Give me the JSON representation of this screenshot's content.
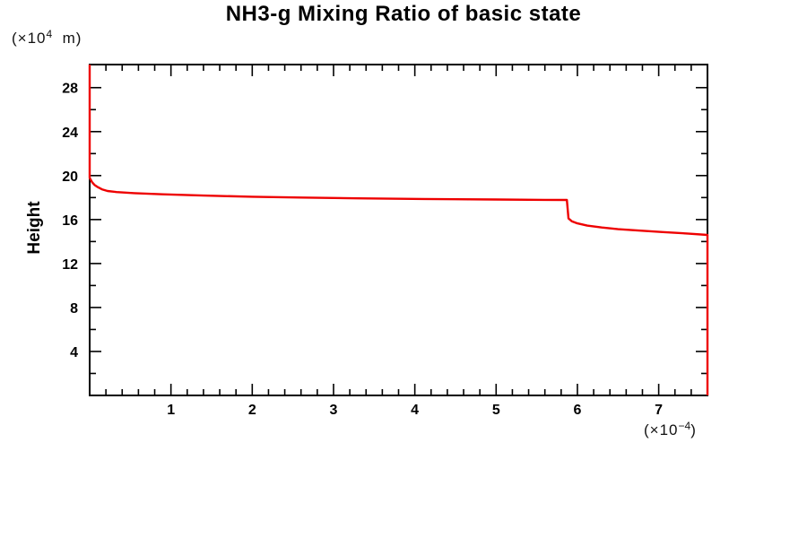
{
  "page": {
    "background": "#ffffff",
    "text_color": "#000000"
  },
  "header": {
    "title": "NH3-g Mixing Ratio of basic state"
  },
  "y_axis": {
    "label": "Height",
    "unit_prefix": "(×10",
    "unit_exponent": "4",
    "unit_suffix": "  m)"
  },
  "x_axis": {
    "unit_prefix": "(×10",
    "unit_exponent": "−4",
    "unit_suffix": ")"
  },
  "chart_data": {
    "type": "line",
    "title": "NH3-g Mixing Ratio of basic state",
    "xlabel": "(×10⁻⁴)",
    "ylabel": "Height (×10⁴ m)",
    "xlim": [
      0,
      7.6
    ],
    "ylim": [
      0,
      30.1
    ],
    "x_ticks_major": [
      1,
      2,
      3,
      4,
      5,
      6,
      7
    ],
    "x_minor_tick_step": 0.2,
    "y_ticks_major": [
      4,
      8,
      12,
      16,
      20,
      24,
      28
    ],
    "y_minor_tick_step": 2,
    "grid": false,
    "legend": "none",
    "axis_color": "#000000",
    "series": [
      {
        "name": "NH3-g mixing ratio basic state profile",
        "color": "#ee0000",
        "points": [
          [
            0.0,
            30.1
          ],
          [
            0.0,
            19.8
          ],
          [
            0.03,
            19.4
          ],
          [
            0.06,
            19.15
          ],
          [
            0.1,
            18.95
          ],
          [
            0.15,
            18.75
          ],
          [
            0.22,
            18.6
          ],
          [
            0.33,
            18.5
          ],
          [
            0.55,
            18.4
          ],
          [
            0.9,
            18.3
          ],
          [
            1.4,
            18.18
          ],
          [
            2.0,
            18.08
          ],
          [
            2.6,
            18.0
          ],
          [
            3.3,
            17.93
          ],
          [
            4.1,
            17.87
          ],
          [
            5.0,
            17.82
          ],
          [
            5.6,
            17.79
          ],
          [
            5.87,
            17.78
          ],
          [
            5.89,
            16.1
          ],
          [
            5.93,
            15.85
          ],
          [
            6.0,
            15.65
          ],
          [
            6.12,
            15.45
          ],
          [
            6.3,
            15.28
          ],
          [
            6.5,
            15.12
          ],
          [
            6.75,
            15.0
          ],
          [
            7.05,
            14.86
          ],
          [
            7.35,
            14.73
          ],
          [
            7.6,
            14.6
          ],
          [
            7.6,
            0.0
          ]
        ]
      }
    ]
  }
}
